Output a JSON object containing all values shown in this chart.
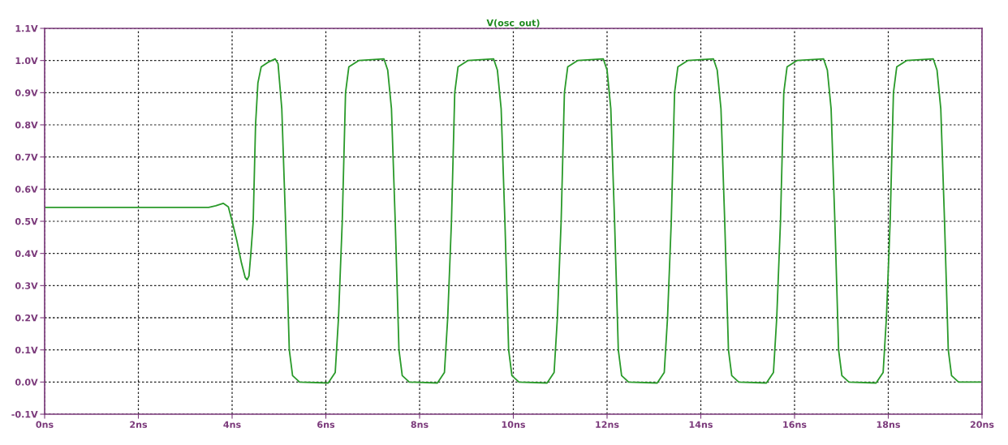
{
  "chart_data": {
    "type": "line",
    "title": "V(osc_out)",
    "line_style": "solid",
    "marker": "none",
    "grid": true,
    "xlim": [
      0,
      20
    ],
    "ylim": [
      -0.1,
      1.1
    ],
    "xticks": [
      {
        "value": 0,
        "label": "0ns"
      },
      {
        "value": 2,
        "label": "2ns"
      },
      {
        "value": 4,
        "label": "4ns"
      },
      {
        "value": 6,
        "label": "6ns"
      },
      {
        "value": 8,
        "label": "8ns"
      },
      {
        "value": 10,
        "label": "10ns"
      },
      {
        "value": 12,
        "label": "12ns"
      },
      {
        "value": 14,
        "label": "14ns"
      },
      {
        "value": 16,
        "label": "16ns"
      },
      {
        "value": 18,
        "label": "18ns"
      },
      {
        "value": 20,
        "label": "20ns"
      }
    ],
    "yticks": [
      {
        "value": -0.1,
        "label": "-0.1V"
      },
      {
        "value": 0.0,
        "label": "0.0V"
      },
      {
        "value": 0.1,
        "label": "0.1V"
      },
      {
        "value": 0.2,
        "label": "0.2V"
      },
      {
        "value": 0.3,
        "label": "0.3V"
      },
      {
        "value": 0.4,
        "label": "0.4V"
      },
      {
        "value": 0.5,
        "label": "0.5V"
      },
      {
        "value": 0.6,
        "label": "0.6V"
      },
      {
        "value": 0.7,
        "label": "0.7V"
      },
      {
        "value": 0.8,
        "label": "0.8V"
      },
      {
        "value": 0.9,
        "label": "0.9V"
      },
      {
        "value": 1.0,
        "label": "1.0V"
      },
      {
        "value": 1.1,
        "label": "1.1V"
      }
    ],
    "series": [
      {
        "color": "#2a9a2a",
        "x": [
          0,
          3.5,
          3.65,
          3.81,
          3.92,
          4.0,
          4.1,
          4.2,
          4.28,
          4.32,
          4.36,
          4.4,
          4.45,
          4.5,
          4.55,
          4.62,
          4.77,
          4.92,
          4.98,
          5.06,
          5.14,
          5.22,
          5.29,
          5.44,
          6.05,
          6.2,
          6.27,
          6.35,
          6.42,
          6.49,
          6.7,
          7.24,
          7.32,
          7.4,
          7.48,
          7.56,
          7.63,
          7.78,
          8.38,
          8.53,
          8.6,
          8.68,
          8.75,
          8.82,
          9.03,
          9.58,
          9.66,
          9.74,
          9.82,
          9.9,
          9.97,
          10.12,
          10.72,
          10.87,
          10.94,
          11.02,
          11.09,
          11.16,
          11.37,
          11.92,
          12.0,
          12.08,
          12.16,
          12.24,
          12.31,
          12.46,
          13.07,
          13.22,
          13.29,
          13.37,
          13.44,
          13.51,
          13.72,
          14.27,
          14.35,
          14.43,
          14.51,
          14.59,
          14.66,
          14.81,
          15.4,
          15.55,
          15.62,
          15.7,
          15.77,
          15.84,
          16.05,
          16.62,
          16.7,
          16.78,
          16.86,
          16.94,
          17.01,
          17.16,
          17.74,
          17.89,
          17.96,
          18.04,
          18.11,
          18.18,
          18.39,
          18.96,
          19.04,
          19.12,
          19.2,
          19.28,
          19.35,
          19.5,
          20
        ],
        "values": [
          0.543,
          0.543,
          0.548,
          0.556,
          0.545,
          0.5,
          0.44,
          0.37,
          0.325,
          0.318,
          0.33,
          0.4,
          0.5,
          0.8,
          0.93,
          0.98,
          0.995,
          1.005,
          0.99,
          0.85,
          0.5,
          0.1,
          0.02,
          0.0,
          -0.003,
          0.03,
          0.2,
          0.5,
          0.9,
          0.98,
          1.0,
          1.005,
          0.97,
          0.85,
          0.5,
          0.1,
          0.02,
          0.0,
          -0.003,
          0.03,
          0.2,
          0.5,
          0.9,
          0.98,
          1.0,
          1.005,
          0.97,
          0.85,
          0.5,
          0.1,
          0.02,
          0.0,
          -0.003,
          0.03,
          0.2,
          0.5,
          0.9,
          0.98,
          1.0,
          1.005,
          0.97,
          0.85,
          0.5,
          0.1,
          0.02,
          0.0,
          -0.003,
          0.03,
          0.2,
          0.5,
          0.9,
          0.98,
          1.0,
          1.005,
          0.97,
          0.85,
          0.5,
          0.1,
          0.02,
          0.0,
          -0.003,
          0.03,
          0.2,
          0.5,
          0.9,
          0.98,
          1.0,
          1.005,
          0.97,
          0.85,
          0.5,
          0.1,
          0.02,
          0.0,
          -0.003,
          0.03,
          0.2,
          0.5,
          0.9,
          0.98,
          1.0,
          1.005,
          0.97,
          0.85,
          0.5,
          0.1,
          0.02,
          0.0,
          0.0
        ]
      }
    ]
  }
}
